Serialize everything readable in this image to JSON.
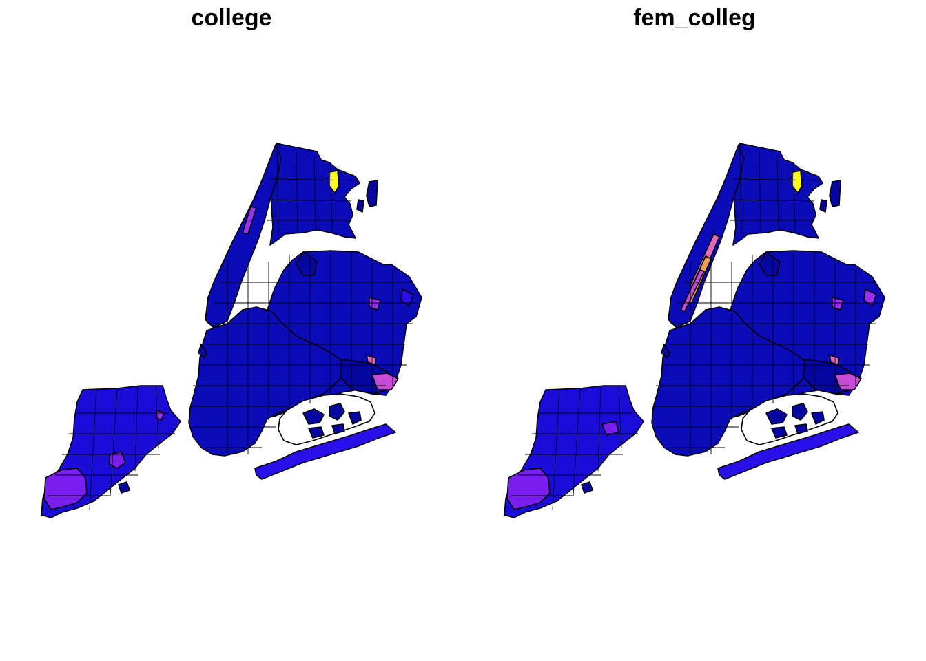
{
  "panels": [
    {
      "title": "college",
      "colors": {
        "base": "#0b0bb8",
        "dark": "#0606a0",
        "mid": "#2a10e8",
        "staten": "#1c0cd8",
        "purple": "#7a1ef0",
        "violet": "#9b30f4",
        "magenta": "#c84ad8",
        "pink": "#e06ac0",
        "yellow": "#ffff10",
        "orange": "#f2a050"
      }
    },
    {
      "title": "fem_colleg",
      "colors": {
        "base": "#0b0bb8",
        "dark": "#0606a0",
        "mid": "#2a10e8",
        "staten": "#1c0cd8",
        "purple": "#7a1ef0",
        "violet": "#9b30f4",
        "magenta": "#c84ad8",
        "pink": "#e06ac0",
        "yellow": "#ffff10",
        "orange": "#f2a050"
      }
    }
  ]
}
